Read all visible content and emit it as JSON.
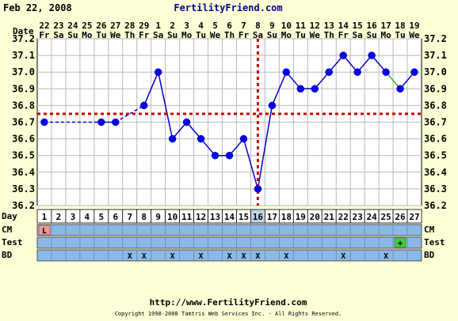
{
  "header": {
    "date": "Feb 22, 2008",
    "site": "FertilityFriend.com"
  },
  "footer": {
    "url": "http://www.FertilityFriend.com",
    "copyright": "Copyright 1998-2008 Tamtris Web Services Inc. - All Rights Reserved."
  },
  "row_labels": {
    "date": "Date",
    "day": "Day",
    "cm": "CM",
    "test": "Test",
    "bd": "BD"
  },
  "colors": {
    "background": "#fefed6",
    "plot_bg": "#ffffff",
    "line": "#0000cc",
    "point": "#0000ee",
    "coverline": "#cc0000",
    "ovulation_line": "#cc0000",
    "fill_line": "#33aa33",
    "row_fill": "#8db8e8",
    "cm_fill": "#e99a9a",
    "test_fill": "#44cc44"
  },
  "chart_data": {
    "type": "line",
    "title": "",
    "ylim": [
      36.2,
      37.2
    ],
    "yticks": [
      "36.2",
      "36.3",
      "36.4",
      "36.5",
      "36.6",
      "36.7",
      "36.8",
      "36.9",
      "37.0",
      "37.1",
      "37.2"
    ],
    "dates": [
      "22",
      "23",
      "24",
      "25",
      "26",
      "27",
      "28",
      "29",
      "1",
      "2",
      "3",
      "4",
      "5",
      "6",
      "7",
      "8",
      "9",
      "10",
      "11",
      "12",
      "13",
      "14",
      "15",
      "16",
      "17",
      "18",
      "19"
    ],
    "weekdays": [
      "Fr",
      "Sa",
      "Su",
      "Mo",
      "Tu",
      "We",
      "Th",
      "Fr",
      "Sa",
      "Su",
      "Mo",
      "Tu",
      "We",
      "Th",
      "Fr",
      "Sa",
      "Su",
      "Mo",
      "Tu",
      "We",
      "Th",
      "Fr",
      "Sa",
      "Su",
      "Mo",
      "Tu",
      "We"
    ],
    "days": [
      "1",
      "2",
      "3",
      "4",
      "5",
      "6",
      "7",
      "8",
      "9",
      "10",
      "11",
      "12",
      "13",
      "14",
      "15",
      "16",
      "17",
      "18",
      "19",
      "20",
      "21",
      "22",
      "23",
      "24",
      "25",
      "26",
      "27"
    ],
    "series": [
      {
        "values": [
          36.7,
          null,
          null,
          null,
          36.7,
          36.7,
          null,
          36.8,
          37.0,
          36.6,
          36.7,
          36.6,
          36.5,
          36.5,
          36.6,
          36.3,
          36.8,
          37.0,
          36.9,
          36.9,
          37.0,
          37.1,
          37.0,
          37.1,
          37.0,
          36.9,
          37.0
        ]
      }
    ],
    "coverline": 36.75,
    "ovulation_day": 16,
    "cm": [
      {
        "day": 1,
        "label": "L"
      }
    ],
    "test": [
      {
        "day": 26,
        "label": "+"
      }
    ],
    "bd_days": [
      7,
      8,
      10,
      12,
      14,
      15,
      16,
      18,
      22,
      25
    ],
    "bd_mark": "X"
  }
}
